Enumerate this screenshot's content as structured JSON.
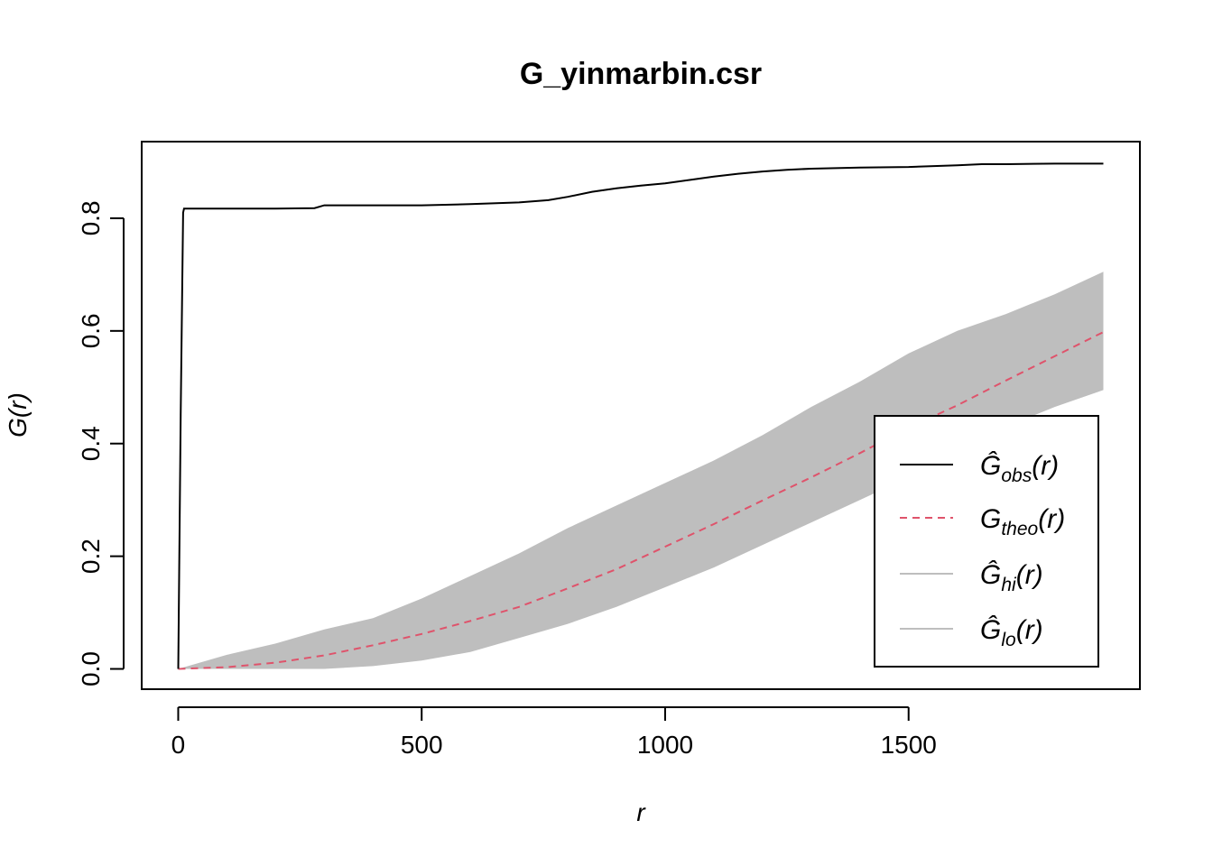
{
  "chart_data": {
    "type": "line",
    "title": "G_yinmarbin.csr",
    "xlabel": "r",
    "ylabel": "G(r)",
    "xlim": [
      -75,
      1975
    ],
    "ylim": [
      -0.036,
      0.936
    ],
    "x_ticks": [
      0,
      500,
      1000,
      1500
    ],
    "x_tick_labels": [
      "0",
      "500",
      "1000",
      "1500"
    ],
    "y_ticks": [
      0.0,
      0.2,
      0.4,
      0.6,
      0.8
    ],
    "y_tick_labels": [
      "0.0",
      "0.2",
      "0.4",
      "0.6",
      "0.8"
    ],
    "grid": false,
    "legend_position": "bottom-right",
    "colors": {
      "obs": "#000000",
      "theo": "#DF536B",
      "envelope": "#BEBEBE"
    },
    "series": [
      {
        "name": "obs",
        "legend_base": "Ĝ",
        "legend_sub": "obs",
        "legend_tail": "(r)",
        "style": "solid",
        "x": [
          0,
          5,
          10,
          12,
          100,
          200,
          280,
          300,
          400,
          500,
          600,
          700,
          760,
          800,
          850,
          900,
          950,
          1000,
          1050,
          1100,
          1150,
          1200,
          1250,
          1300,
          1400,
          1500,
          1600,
          1650,
          1700,
          1800,
          1900
        ],
        "y": [
          0.0,
          0.45,
          0.81,
          0.817,
          0.817,
          0.817,
          0.818,
          0.823,
          0.823,
          0.823,
          0.825,
          0.828,
          0.832,
          0.838,
          0.847,
          0.853,
          0.858,
          0.862,
          0.868,
          0.874,
          0.879,
          0.883,
          0.886,
          0.888,
          0.89,
          0.891,
          0.894,
          0.896,
          0.896,
          0.897,
          0.897
        ]
      },
      {
        "name": "theo",
        "legend_base": "G",
        "legend_sub": "theo",
        "legend_tail": "(r)",
        "style": "dashed",
        "x": [
          0,
          100,
          200,
          300,
          400,
          500,
          600,
          700,
          800,
          900,
          1000,
          1100,
          1200,
          1300,
          1400,
          1500,
          1600,
          1700,
          1800,
          1900
        ],
        "y": [
          0.0,
          0.003,
          0.011,
          0.024,
          0.042,
          0.062,
          0.085,
          0.11,
          0.143,
          0.177,
          0.217,
          0.257,
          0.299,
          0.34,
          0.383,
          0.428,
          0.468,
          0.512,
          0.555,
          0.598
        ]
      },
      {
        "name": "hi",
        "legend_base": "Ĝ",
        "legend_sub": "hi",
        "legend_tail": "(r)",
        "style": "band-upper",
        "x": [
          0,
          100,
          200,
          300,
          400,
          500,
          600,
          700,
          800,
          900,
          1000,
          1100,
          1200,
          1300,
          1400,
          1500,
          1600,
          1700,
          1800,
          1900
        ],
        "y": [
          0.0,
          0.025,
          0.045,
          0.07,
          0.09,
          0.125,
          0.165,
          0.205,
          0.25,
          0.29,
          0.33,
          0.37,
          0.415,
          0.465,
          0.51,
          0.56,
          0.6,
          0.63,
          0.665,
          0.705
        ]
      },
      {
        "name": "lo",
        "legend_base": "Ĝ",
        "legend_sub": "lo",
        "legend_tail": "(r)",
        "style": "band-lower",
        "x": [
          0,
          100,
          200,
          300,
          400,
          500,
          600,
          700,
          800,
          900,
          1000,
          1100,
          1200,
          1300,
          1400,
          1500,
          1600,
          1700,
          1800,
          1900
        ],
        "y": [
          0.0,
          0.0,
          0.0,
          0.0,
          0.005,
          0.015,
          0.03,
          0.055,
          0.08,
          0.11,
          0.145,
          0.18,
          0.22,
          0.26,
          0.3,
          0.34,
          0.385,
          0.43,
          0.465,
          0.495
        ]
      }
    ]
  }
}
